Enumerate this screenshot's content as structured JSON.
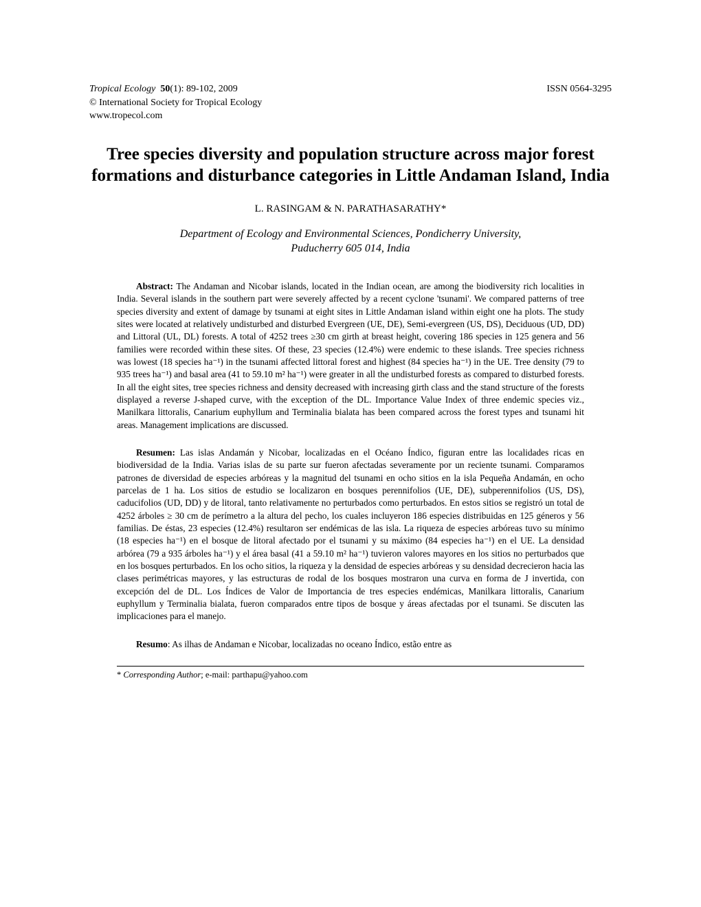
{
  "header": {
    "journal_name": "Tropical Ecology",
    "volume_bold": "50",
    "issue_pages_year": "(1): 89-102, 2009",
    "issn": "ISSN 0564-3295",
    "copyright": "© International Society for Tropical Ecology",
    "url": "www.tropecol.com"
  },
  "title_line1": "Tree species diversity and population structure across major forest",
  "title_line2": "formations and disturbance categories in Little Andaman Island, India",
  "authors": "L. RASINGAM & N. PARATHASARATHY*",
  "affiliation_line1": "Department of Ecology and Environmental Sciences, Pondicherry University,",
  "affiliation_line2": "Puducherry 605 014, India",
  "abstract_en": {
    "label": "Abstract:",
    "text": " The Andaman and Nicobar islands, located in the Indian ocean, are among the biodiversity rich localities in India. Several islands in the southern part were severely affected by a recent cyclone 'tsunami'. We compared patterns of tree species diversity and extent of damage by tsunami at eight sites in Little Andaman island within eight one ha plots. The study sites were located at relatively undisturbed and disturbed Evergreen (UE, DE), Semi-evergreen (US, DS), Deciduous (UD, DD) and Littoral (UL, DL) forests. A total of 4252 trees ≥30 cm girth at breast height, covering 186 species in 125 genera and 56 families were recorded within these sites. Of these, 23 species (12.4%) were endemic to these islands. Tree species richness was lowest (18 species ha⁻¹) in the tsunami affected littoral forest and highest (84 species ha⁻¹) in the UE. Tree density (79 to 935 trees ha⁻¹) and basal area (41 to 59.10 m² ha⁻¹) were greater in all the undisturbed forests as compared to disturbed forests. In all the eight sites, tree species richness and density decreased with increasing girth class and the stand structure of the forests displayed a reverse J-shaped curve, with the exception of the DL. Importance Value Index of three endemic species viz., Manilkara littoralis, Canarium euphyllum and Terminalia bialata has been compared across the forest types and tsunami hit areas. Management implications are discussed."
  },
  "abstract_es": {
    "label": "Resumen:",
    "text": " Las islas Andamán y Nicobar, localizadas en el Océano Índico, figuran entre las localidades ricas en biodiversidad de la India. Varias islas de su parte sur fueron afectadas severamente por un reciente tsunami. Comparamos patrones de diversidad de especies arbóreas y la magnitud del tsunami en ocho sitios en la isla Pequeña Andamán, en ocho parcelas de 1 ha. Los sitios de estudio se localizaron en bosques perennifolios (UE, DE), subperennifolios (US, DS), caducifolios (UD, DD) y de litoral, tanto relativamente no perturbados como perturbados. En estos sitios se registró un total de 4252 árboles ≥ 30 cm de perímetro a la altura del pecho, los cuales incluyeron 186 especies distribuidas en 125 géneros y 56 familias. De éstas, 23 especies (12.4%) resultaron ser endémicas de las isla. La riqueza de especies arbóreas tuvo su mínimo (18 especies ha⁻¹) en el bosque de litoral afectado por el tsunami y su máximo (84 especies ha⁻¹) en el UE. La densidad arbórea (79 a 935 árboles ha⁻¹) y el área basal (41 a 59.10 m² ha⁻¹) tuvieron valores mayores en los sitios no perturbados que en los bosques perturbados. En los ocho sitios, la riqueza y la densidad de especies arbóreas y su densidad decrecieron hacia las clases perimétricas mayores, y las estructuras de rodal de los bosques mostraron una curva en forma de J invertida, con excepción del de DL. Los Índices de Valor de Importancia de tres especies endémicas, Manilkara littoralis, Canarium euphyllum y Terminalia bialata, fueron comparados entre tipos de bosque y áreas afectadas por el tsunami. Se discuten las implicaciones para el manejo."
  },
  "abstract_pt": {
    "label": "Resumo",
    "text": ": As ilhas de Andaman e Nicobar, localizadas no oceano Índico, estão entre as"
  },
  "footnote": {
    "marker": "*",
    "label": " Corresponding Author",
    "text": "; e-mail: parthapu@yahoo.com"
  }
}
